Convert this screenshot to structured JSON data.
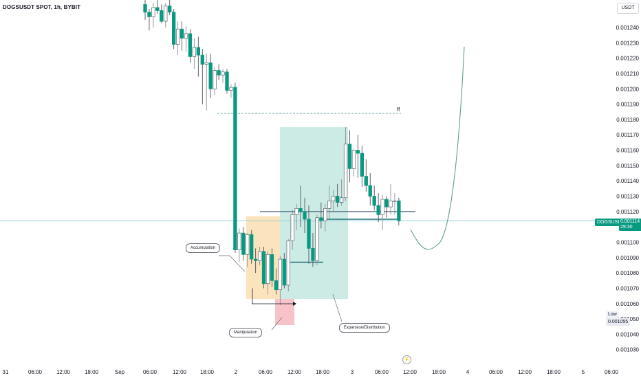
{
  "header": {
    "title": "DOGSUSDT SPOT, 1h, BYBIT",
    "currency": "USDT"
  },
  "last_price": {
    "symbol": "DOGSUSDT",
    "value": "0.001114",
    "countdown": "29:30"
  },
  "low_marker": {
    "label": "Low",
    "value": "0.001055"
  },
  "annotations": {
    "accumulation": "Accumulation",
    "manipulation": "Manipulation",
    "expansion": "Expansion/Distribution",
    "ff": "ff"
  },
  "colors": {
    "up": "#089981",
    "price_line": "#9bcfd8",
    "accumulation_zone": "#fbe3bd",
    "expansion_zone": "#cdebe5",
    "manipulation_zone": "#f8c3c8",
    "projection_curve": "#5e9e8e"
  },
  "chart_data": {
    "type": "candlestick",
    "title": "DOGSUSDT SPOT, 1h, BYBIT",
    "ylim": [
      0.001027,
      0.00125
    ],
    "y_ticks": [
      "0.001240",
      "0.001230",
      "0.001220",
      "0.001210",
      "0.001200",
      "0.001190",
      "0.001180",
      "0.001170",
      "0.001160",
      "0.001150",
      "0.001140",
      "0.001130",
      "0.001120",
      "0.001100",
      "0.001090",
      "0.001080",
      "0.001070",
      "0.001060",
      "0.001050",
      "0.001040",
      "0.001030"
    ],
    "x_ticks": [
      "31",
      "06:00",
      "12:00",
      "18:00",
      "Sep",
      "06:00",
      "12:00",
      "18:00",
      "2",
      "06:00",
      "12:00",
      "18:00",
      "3",
      "06:00",
      "12:00",
      "18:00",
      "4",
      "06:00",
      "12:00",
      "18:00",
      "5",
      "06:00"
    ],
    "candles": [
      {
        "o": 0.001255,
        "h": 0.001258,
        "l": 0.001245,
        "c": 0.00125
      },
      {
        "o": 0.00125,
        "h": 0.001252,
        "l": 0.001238,
        "c": 0.001247
      },
      {
        "o": 0.001247,
        "h": 0.001256,
        "l": 0.00124,
        "c": 0.001253
      },
      {
        "o": 0.001253,
        "h": 0.001258,
        "l": 0.001249,
        "c": 0.001251
      },
      {
        "o": 0.001251,
        "h": 0.001255,
        "l": 0.001243,
        "c": 0.001244
      },
      {
        "o": 0.001244,
        "h": 0.001256,
        "l": 0.00124,
        "c": 0.001254
      },
      {
        "o": 0.001254,
        "h": 0.001258,
        "l": 0.001248,
        "c": 0.00125
      },
      {
        "o": 0.00125,
        "h": 0.001252,
        "l": 0.001226,
        "c": 0.001229
      },
      {
        "o": 0.001229,
        "h": 0.001244,
        "l": 0.001222,
        "c": 0.001239
      },
      {
        "o": 0.001239,
        "h": 0.001244,
        "l": 0.001225,
        "c": 0.001233
      },
      {
        "o": 0.001233,
        "h": 0.001241,
        "l": 0.001224,
        "c": 0.001236
      },
      {
        "o": 0.001236,
        "h": 0.001239,
        "l": 0.001217,
        "c": 0.001221
      },
      {
        "o": 0.001221,
        "h": 0.001233,
        "l": 0.001213,
        "c": 0.001227
      },
      {
        "o": 0.001227,
        "h": 0.001234,
        "l": 0.001208,
        "c": 0.001222
      },
      {
        "o": 0.001222,
        "h": 0.001226,
        "l": 0.00119,
        "c": 0.001216
      },
      {
        "o": 0.001216,
        "h": 0.001223,
        "l": 0.001186,
        "c": 0.001217
      },
      {
        "o": 0.001217,
        "h": 0.001223,
        "l": 0.001194,
        "c": 0.0012
      },
      {
        "o": 0.0012,
        "h": 0.001214,
        "l": 0.001196,
        "c": 0.001212
      },
      {
        "o": 0.001212,
        "h": 0.001216,
        "l": 0.001206,
        "c": 0.001209
      },
      {
        "o": 0.001209,
        "h": 0.001213,
        "l": 0.001204,
        "c": 0.001211
      },
      {
        "o": 0.001211,
        "h": 0.001213,
        "l": 0.001197,
        "c": 0.001199
      },
      {
        "o": 0.001199,
        "h": 0.001203,
        "l": 0.001194,
        "c": 0.001201
      },
      {
        "o": 0.001201,
        "h": 0.001204,
        "l": 0.001093,
        "c": 0.001095
      },
      {
        "o": 0.001095,
        "h": 0.001109,
        "l": 0.001087,
        "c": 0.001106
      },
      {
        "o": 0.001106,
        "h": 0.00111,
        "l": 0.001088,
        "c": 0.001092
      },
      {
        "o": 0.001092,
        "h": 0.001106,
        "l": 0.001084,
        "c": 0.001105
      },
      {
        "o": 0.001105,
        "h": 0.001108,
        "l": 0.001086,
        "c": 0.001089
      },
      {
        "o": 0.001089,
        "h": 0.001096,
        "l": 0.00108,
        "c": 0.001088
      },
      {
        "o": 0.001088,
        "h": 0.001097,
        "l": 0.001085,
        "c": 0.001094
      },
      {
        "o": 0.001094,
        "h": 0.001097,
        "l": 0.00107,
        "c": 0.001073
      },
      {
        "o": 0.001073,
        "h": 0.001094,
        "l": 0.001066,
        "c": 0.001092
      },
      {
        "o": 0.001092,
        "h": 0.001096,
        "l": 0.001071,
        "c": 0.001075
      },
      {
        "o": 0.001075,
        "h": 0.001083,
        "l": 0.001066,
        "c": 0.001069
      },
      {
        "o": 0.001069,
        "h": 0.001091,
        "l": 0.001059,
        "c": 0.001089
      },
      {
        "o": 0.001089,
        "h": 0.001093,
        "l": 0.00107,
        "c": 0.001072
      },
      {
        "o": 0.001072,
        "h": 0.001102,
        "l": 0.001068,
        "c": 0.001101
      },
      {
        "o": 0.001101,
        "h": 0.001121,
        "l": 0.001095,
        "c": 0.001118
      },
      {
        "o": 0.001118,
        "h": 0.001125,
        "l": 0.001108,
        "c": 0.001122
      },
      {
        "o": 0.001122,
        "h": 0.001137,
        "l": 0.00111,
        "c": 0.00112
      },
      {
        "o": 0.00112,
        "h": 0.001129,
        "l": 0.001106,
        "c": 0.001115
      },
      {
        "o": 0.001115,
        "h": 0.001124,
        "l": 0.001086,
        "c": 0.001096
      },
      {
        "o": 0.001096,
        "h": 0.001106,
        "l": 0.001084,
        "c": 0.001088
      },
      {
        "o": 0.001088,
        "h": 0.001118,
        "l": 0.001085,
        "c": 0.001116
      },
      {
        "o": 0.001116,
        "h": 0.001126,
        "l": 0.001109,
        "c": 0.001114
      },
      {
        "o": 0.001114,
        "h": 0.001125,
        "l": 0.001107,
        "c": 0.001122
      },
      {
        "o": 0.001122,
        "h": 0.001137,
        "l": 0.001115,
        "c": 0.001127
      },
      {
        "o": 0.001127,
        "h": 0.001134,
        "l": 0.00112,
        "c": 0.00113
      },
      {
        "o": 0.00113,
        "h": 0.001138,
        "l": 0.001123,
        "c": 0.001126
      },
      {
        "o": 0.001126,
        "h": 0.001141,
        "l": 0.001124,
        "c": 0.001129
      },
      {
        "o": 0.001129,
        "h": 0.001175,
        "l": 0.001127,
        "c": 0.001164
      },
      {
        "o": 0.001164,
        "h": 0.001173,
        "l": 0.001139,
        "c": 0.001148
      },
      {
        "o": 0.001148,
        "h": 0.001161,
        "l": 0.001143,
        "c": 0.00116
      },
      {
        "o": 0.00116,
        "h": 0.00117,
        "l": 0.001142,
        "c": 0.001158
      },
      {
        "o": 0.001158,
        "h": 0.001163,
        "l": 0.001136,
        "c": 0.001143
      },
      {
        "o": 0.001143,
        "h": 0.001154,
        "l": 0.001133,
        "c": 0.001137
      },
      {
        "o": 0.001137,
        "h": 0.001145,
        "l": 0.001124,
        "c": 0.00113
      },
      {
        "o": 0.00113,
        "h": 0.001137,
        "l": 0.001121,
        "c": 0.001124
      },
      {
        "o": 0.001124,
        "h": 0.001132,
        "l": 0.001113,
        "c": 0.001118
      },
      {
        "o": 0.001118,
        "h": 0.001131,
        "l": 0.001108,
        "c": 0.001128
      },
      {
        "o": 0.001128,
        "h": 0.00113,
        "l": 0.001116,
        "c": 0.001123
      },
      {
        "o": 0.001123,
        "h": 0.001138,
        "l": 0.001118,
        "c": 0.001127
      },
      {
        "o": 0.001127,
        "h": 0.001132,
        "l": 0.001118,
        "c": 0.001127
      },
      {
        "o": 0.001127,
        "h": 0.001129,
        "l": 0.001111,
        "c": 0.001114
      }
    ],
    "price_line": 0.001114,
    "dashed_level": 0.001184,
    "levels": [
      0.00112,
      0.001115,
      0.001087
    ]
  }
}
